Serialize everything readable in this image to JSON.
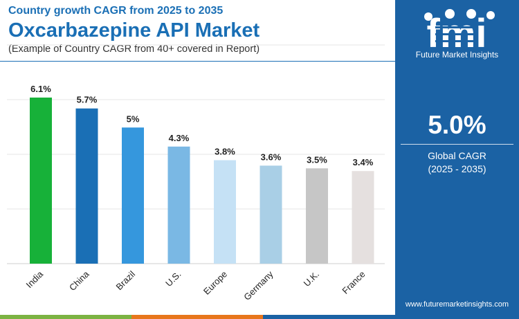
{
  "header": {
    "subtitle_top": "Country growth CAGR from 2025 to 2035",
    "title": "Oxcarbazepine API Market",
    "subtitle_bottom": "(Example of Country CAGR from 40+ covered in Report)"
  },
  "sidebar": {
    "logo_text": "fmi",
    "brand_name": "Future Market Insights",
    "stat_value": "5.0%",
    "stat_label_line1": "Global CAGR",
    "stat_label_line2": "(2025 - 2035)",
    "url": "www.futuremarketinsights.com"
  },
  "colors": {
    "brand_blue": "#1b62a4",
    "title_blue": "#1a6fb5",
    "strip": [
      "#7cb342",
      "#e8761b",
      "#1b62a4"
    ]
  },
  "chart_data": {
    "type": "bar",
    "categories": [
      "India",
      "China",
      "Brazil",
      "U.S.",
      "Europe",
      "Germany",
      "U.K.",
      "France"
    ],
    "values": [
      6.1,
      5.7,
      5.0,
      4.3,
      3.8,
      3.6,
      3.5,
      3.4
    ],
    "value_labels": [
      "6.1%",
      "5.7%",
      "5%",
      "4.3%",
      "3.8%",
      "3.6%",
      "3.5%",
      "3.4%"
    ],
    "bar_colors": [
      "#17b139",
      "#1a6fb5",
      "#3597dd",
      "#7ab8e4",
      "#c5e1f5",
      "#a9cfe6",
      "#c6c6c6",
      "#e5e0df"
    ],
    "ylim": [
      0,
      6.1
    ],
    "grid": true,
    "legend": "none"
  }
}
